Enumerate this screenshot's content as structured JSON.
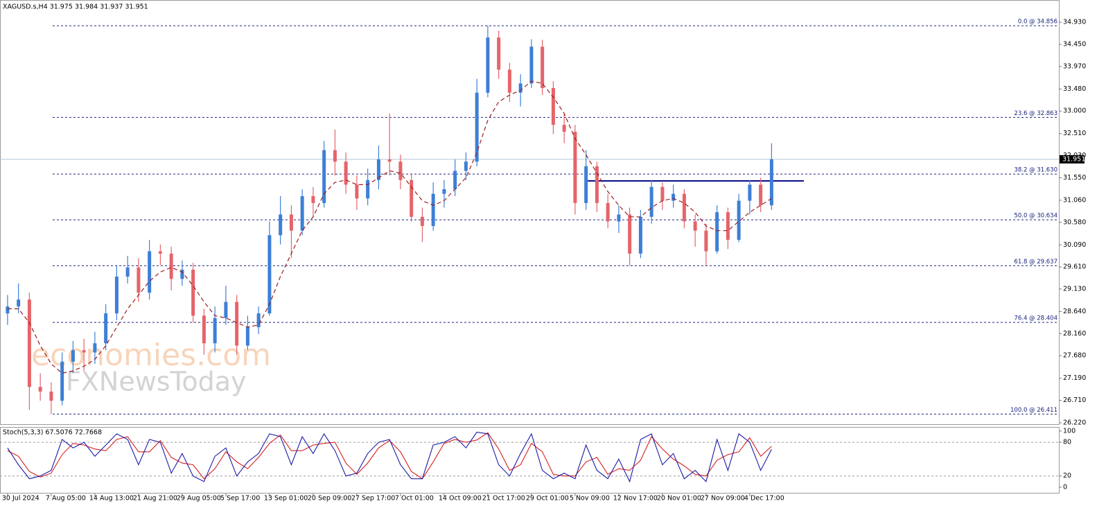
{
  "chart_data": {
    "type": "candlestick",
    "title": "XAGUSD.s,H4  31.975 31.984 31.937 31.951",
    "up_color": "#3d7fd6",
    "down_color": "#e5646a",
    "categories": [
      "30 Jul 2024",
      null,
      null,
      null,
      "7 Aug 05:00",
      null,
      null,
      null,
      "14 Aug 13:00",
      null,
      null,
      null,
      "21 Aug 21:00",
      null,
      null,
      null,
      "29 Aug 05:00",
      null,
      null,
      null,
      "5 Sep 17:00",
      null,
      null,
      null,
      "13 Sep 01:00",
      null,
      null,
      null,
      "20 Sep 09:00",
      null,
      null,
      null,
      "27 Sep 17:00",
      null,
      null,
      null,
      "7 Oct 01:00",
      null,
      null,
      null,
      "14 Oct 09:00",
      null,
      null,
      null,
      "21 Oct 17:00",
      null,
      null,
      null,
      "29 Oct 01:00",
      null,
      null,
      null,
      "5 Nov 09:00",
      null,
      null,
      null,
      "12 Nov 17:00",
      null,
      null,
      null,
      "20 Nov 01:00",
      null,
      null,
      null,
      "27 Nov 09:00",
      null,
      null,
      null,
      "4 Dec 17:00",
      null,
      null
    ],
    "open": [
      28.6,
      28.75,
      28.9,
      27.0,
      26.9,
      26.7,
      27.55,
      27.8,
      27.75,
      27.95,
      28.6,
      29.4,
      29.6,
      29.05,
      29.95,
      29.9,
      29.35,
      29.55,
      28.55,
      27.95,
      28.5,
      28.85,
      27.9,
      28.3,
      28.6,
      30.3,
      30.75,
      30.4,
      31.15,
      31.0,
      32.15,
      31.9,
      31.4,
      31.1,
      31.5,
      31.95,
      31.9,
      31.5,
      30.7,
      30.5,
      31.2,
      31.3,
      31.7,
      31.9,
      33.4,
      34.6,
      33.9,
      33.4,
      33.6,
      34.4,
      33.5,
      32.7,
      32.55,
      31.0,
      31.8,
      31.0,
      30.6,
      30.75,
      29.9,
      30.7,
      31.35,
      31.05,
      31.2,
      30.6,
      30.4,
      29.95,
      30.8,
      30.2,
      31.05,
      31.4,
      30.95
    ],
    "high": [
      29.0,
      29.25,
      29.05,
      27.3,
      27.1,
      27.75,
      28.0,
      28.05,
      28.2,
      28.8,
      29.65,
      29.85,
      29.8,
      30.2,
      30.1,
      30.05,
      29.75,
      29.7,
      28.7,
      28.75,
      29.2,
      29.0,
      28.55,
      28.75,
      30.6,
      31.15,
      30.95,
      31.3,
      31.35,
      32.35,
      32.6,
      32.1,
      31.6,
      31.75,
      32.25,
      32.95,
      32.05,
      31.65,
      30.9,
      31.45,
      31.5,
      31.95,
      32.1,
      33.7,
      34.86,
      34.75,
      34.05,
      33.8,
      34.56,
      34.55,
      33.65,
      32.95,
      32.7,
      32.15,
      31.9,
      31.2,
      30.95,
      30.9,
      30.85,
      31.5,
      31.45,
      31.4,
      31.3,
      30.75,
      30.55,
      30.95,
      30.9,
      31.2,
      31.5,
      31.55,
      32.3
    ],
    "low": [
      28.35,
      28.6,
      26.5,
      26.7,
      26.41,
      26.6,
      27.3,
      27.35,
      27.5,
      27.8,
      28.45,
      29.25,
      28.85,
      28.9,
      29.65,
      29.1,
      29.2,
      28.4,
      27.7,
      27.75,
      28.35,
      27.7,
      27.8,
      28.15,
      28.55,
      30.1,
      29.8,
      30.3,
      30.7,
      30.9,
      31.6,
      31.2,
      30.85,
      30.95,
      31.3,
      31.6,
      31.3,
      30.6,
      30.15,
      30.4,
      30.9,
      31.15,
      31.5,
      31.8,
      33.3,
      33.7,
      33.2,
      33.1,
      33.5,
      33.35,
      32.5,
      32.3,
      30.75,
      30.85,
      30.8,
      30.45,
      30.35,
      29.64,
      29.8,
      30.55,
      30.85,
      30.9,
      30.45,
      30.05,
      29.64,
      29.9,
      30.0,
      30.15,
      30.75,
      30.8,
      30.85
    ],
    "close": [
      28.75,
      28.9,
      27.0,
      26.9,
      26.7,
      27.55,
      27.8,
      27.75,
      27.95,
      28.6,
      29.4,
      29.6,
      29.05,
      29.95,
      29.9,
      29.35,
      29.55,
      28.55,
      27.95,
      28.5,
      28.85,
      27.9,
      28.3,
      28.6,
      30.3,
      30.75,
      30.4,
      31.15,
      31.0,
      32.15,
      31.9,
      31.4,
      31.1,
      31.5,
      31.95,
      31.9,
      31.5,
      30.7,
      30.5,
      31.2,
      31.3,
      31.7,
      31.9,
      33.4,
      34.6,
      33.9,
      33.4,
      33.6,
      34.4,
      33.5,
      32.7,
      32.55,
      31.0,
      31.8,
      31.0,
      30.6,
      30.75,
      29.9,
      30.7,
      31.35,
      31.05,
      31.2,
      30.6,
      30.4,
      29.95,
      30.8,
      30.2,
      31.05,
      31.4,
      30.95,
      31.951
    ],
    "moving_average": {
      "color": "#9b1c1c",
      "values": [
        28.7,
        28.7,
        28.4,
        27.9,
        27.5,
        27.3,
        27.35,
        27.45,
        27.6,
        27.9,
        28.3,
        28.7,
        29.0,
        29.3,
        29.5,
        29.6,
        29.5,
        29.2,
        28.85,
        28.55,
        28.5,
        28.4,
        28.3,
        28.35,
        28.8,
        29.4,
        29.9,
        30.4,
        30.7,
        31.2,
        31.45,
        31.5,
        31.4,
        31.4,
        31.55,
        31.7,
        31.65,
        31.35,
        31.05,
        30.95,
        31.05,
        31.3,
        31.55,
        32.1,
        32.8,
        33.2,
        33.35,
        33.45,
        33.65,
        33.6,
        33.3,
        32.95,
        32.4,
        32.05,
        31.65,
        31.25,
        30.95,
        30.7,
        30.7,
        30.9,
        31.05,
        31.1,
        31.0,
        30.8,
        30.5,
        30.4,
        30.4,
        30.6,
        30.8,
        30.95,
        31.1
      ]
    },
    "ylim": [
      26.19,
      35.37
    ],
    "yticks": [
      {
        "value": 34.93,
        "label": "34.930"
      },
      {
        "value": 34.45,
        "label": "34.450"
      },
      {
        "value": 33.97,
        "label": "33.970"
      },
      {
        "value": 33.48,
        "label": "33.480"
      },
      {
        "value": 33.0,
        "label": "33.000"
      },
      {
        "value": 32.51,
        "label": "32.510"
      },
      {
        "value": 32.03,
        "label": "32.030"
      },
      {
        "value": 31.55,
        "label": "31.550"
      },
      {
        "value": 31.06,
        "label": "31.060"
      },
      {
        "value": 30.58,
        "label": "30.580"
      },
      {
        "value": 30.09,
        "label": "30.090"
      },
      {
        "value": 29.61,
        "label": "29.610"
      },
      {
        "value": 29.13,
        "label": "29.130"
      },
      {
        "value": 28.64,
        "label": "28.640"
      },
      {
        "value": 28.16,
        "label": "28.160"
      },
      {
        "value": 27.68,
        "label": "27.680"
      },
      {
        "value": 27.19,
        "label": "27.190"
      },
      {
        "value": 26.71,
        "label": "26.710"
      },
      {
        "value": 26.22,
        "label": "26.220"
      }
    ],
    "current_price": 31.951,
    "fib_levels": [
      {
        "label": "0.0 @ 34.856",
        "value": 34.856
      },
      {
        "label": "23.6 @ 32.863",
        "value": 32.863
      },
      {
        "label": "38.2 @ 31.630",
        "value": 31.63
      },
      {
        "label": "50.0 @ 30.634",
        "value": 30.634
      },
      {
        "label": "61.8 @ 29.637",
        "value": 29.637
      },
      {
        "label": "76.4 @ 28.404",
        "value": 28.404
      },
      {
        "label": "100.0 @ 26.411",
        "value": 26.411
      }
    ],
    "fib_color": "#1a237e",
    "resistance": {
      "value": 31.48,
      "color": "#0a0a8c"
    },
    "watermark": [
      "economies.com",
      "FXNewsToday"
    ],
    "stochastic": {
      "label": "Stoch(5,3,3) 67.5076 72.7668",
      "ylim": [
        -10,
        106
      ],
      "yticks": [
        100,
        80,
        20,
        0
      ],
      "levels": [
        80,
        20
      ],
      "main": {
        "color": "#1a1aa6",
        "values": [
          70,
          40,
          15,
          20,
          30,
          85,
          70,
          80,
          55,
          75,
          95,
          85,
          40,
          85,
          80,
          25,
          60,
          20,
          10,
          55,
          70,
          20,
          45,
          60,
          95,
          90,
          40,
          90,
          60,
          95,
          65,
          20,
          25,
          60,
          80,
          85,
          40,
          15,
          15,
          75,
          80,
          90,
          70,
          98,
          95,
          40,
          20,
          60,
          95,
          30,
          15,
          25,
          15,
          75,
          30,
          15,
          50,
          10,
          85,
          95,
          40,
          60,
          15,
          30,
          10,
          85,
          30,
          95,
          80,
          30,
          67.5076
        ]
      },
      "signal": {
        "color": "#d61f1f",
        "values": [
          65,
          55,
          28,
          18,
          25,
          58,
          78,
          75,
          68,
          65,
          85,
          90,
          63,
          63,
          83,
          53,
          43,
          40,
          15,
          33,
          63,
          45,
          33,
          53,
          78,
          93,
          65,
          65,
          75,
          78,
          80,
          43,
          23,
          43,
          70,
          83,
          63,
          28,
          15,
          45,
          78,
          85,
          80,
          84,
          97,
          68,
          30,
          40,
          78,
          63,
          23,
          20,
          20,
          45,
          53,
          23,
          33,
          30,
          48,
          90,
          68,
          50,
          38,
          23,
          20,
          48,
          58,
          63,
          88,
          55,
          72.7668
        ]
      }
    }
  }
}
